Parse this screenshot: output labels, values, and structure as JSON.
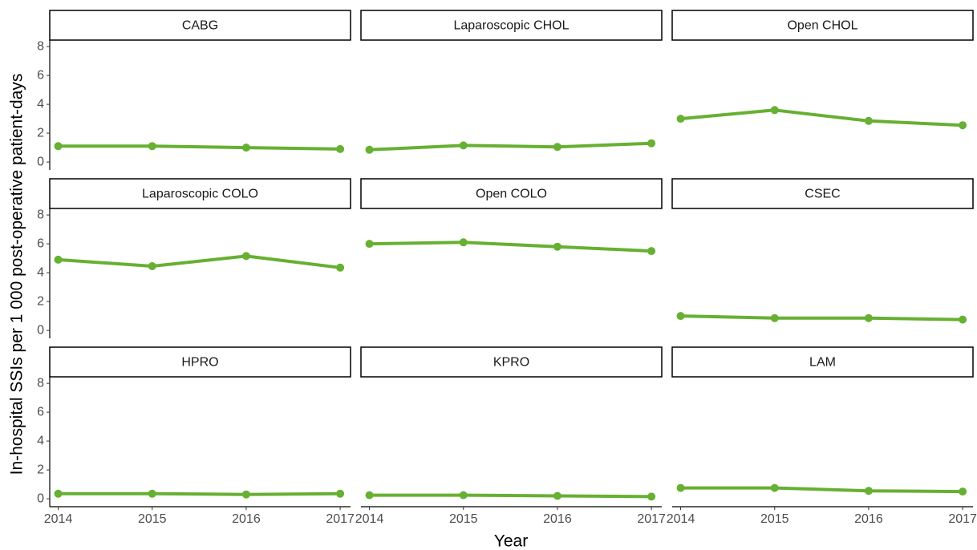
{
  "chart_data": {
    "type": "line",
    "ylabel": "In-hospital SSIs per 1 000 post-operative patient-days",
    "xlabel": "Year",
    "x": [
      2014,
      2015,
      2016,
      2017
    ],
    "xlim": [
      2013.91,
      2017.11
    ],
    "xticks": [
      2014,
      2015,
      2016,
      2017
    ],
    "ylim": [
      -0.55,
      8.45
    ],
    "yticks": [
      0,
      2,
      4,
      6,
      8
    ],
    "color": "#66b032",
    "panels": [
      {
        "title": "CABG",
        "values": [
          1.1,
          1.1,
          1.0,
          0.9
        ]
      },
      {
        "title": "Laparoscopic CHOL",
        "values": [
          0.85,
          1.15,
          1.05,
          1.3
        ]
      },
      {
        "title": "Open CHOL",
        "values": [
          3.0,
          3.6,
          2.85,
          2.55
        ]
      },
      {
        "title": "Laparoscopic COLO",
        "values": [
          4.9,
          4.45,
          5.15,
          4.35
        ]
      },
      {
        "title": "Open COLO",
        "values": [
          6.0,
          6.1,
          5.8,
          5.5
        ]
      },
      {
        "title": "CSEC",
        "values": [
          1.0,
          0.85,
          0.85,
          0.75
        ]
      },
      {
        "title": "HPRO",
        "values": [
          0.35,
          0.35,
          0.3,
          0.35
        ]
      },
      {
        "title": "KPRO",
        "values": [
          0.25,
          0.25,
          0.2,
          0.15
        ]
      },
      {
        "title": "LAM",
        "values": [
          0.75,
          0.75,
          0.55,
          0.5
        ]
      }
    ]
  }
}
